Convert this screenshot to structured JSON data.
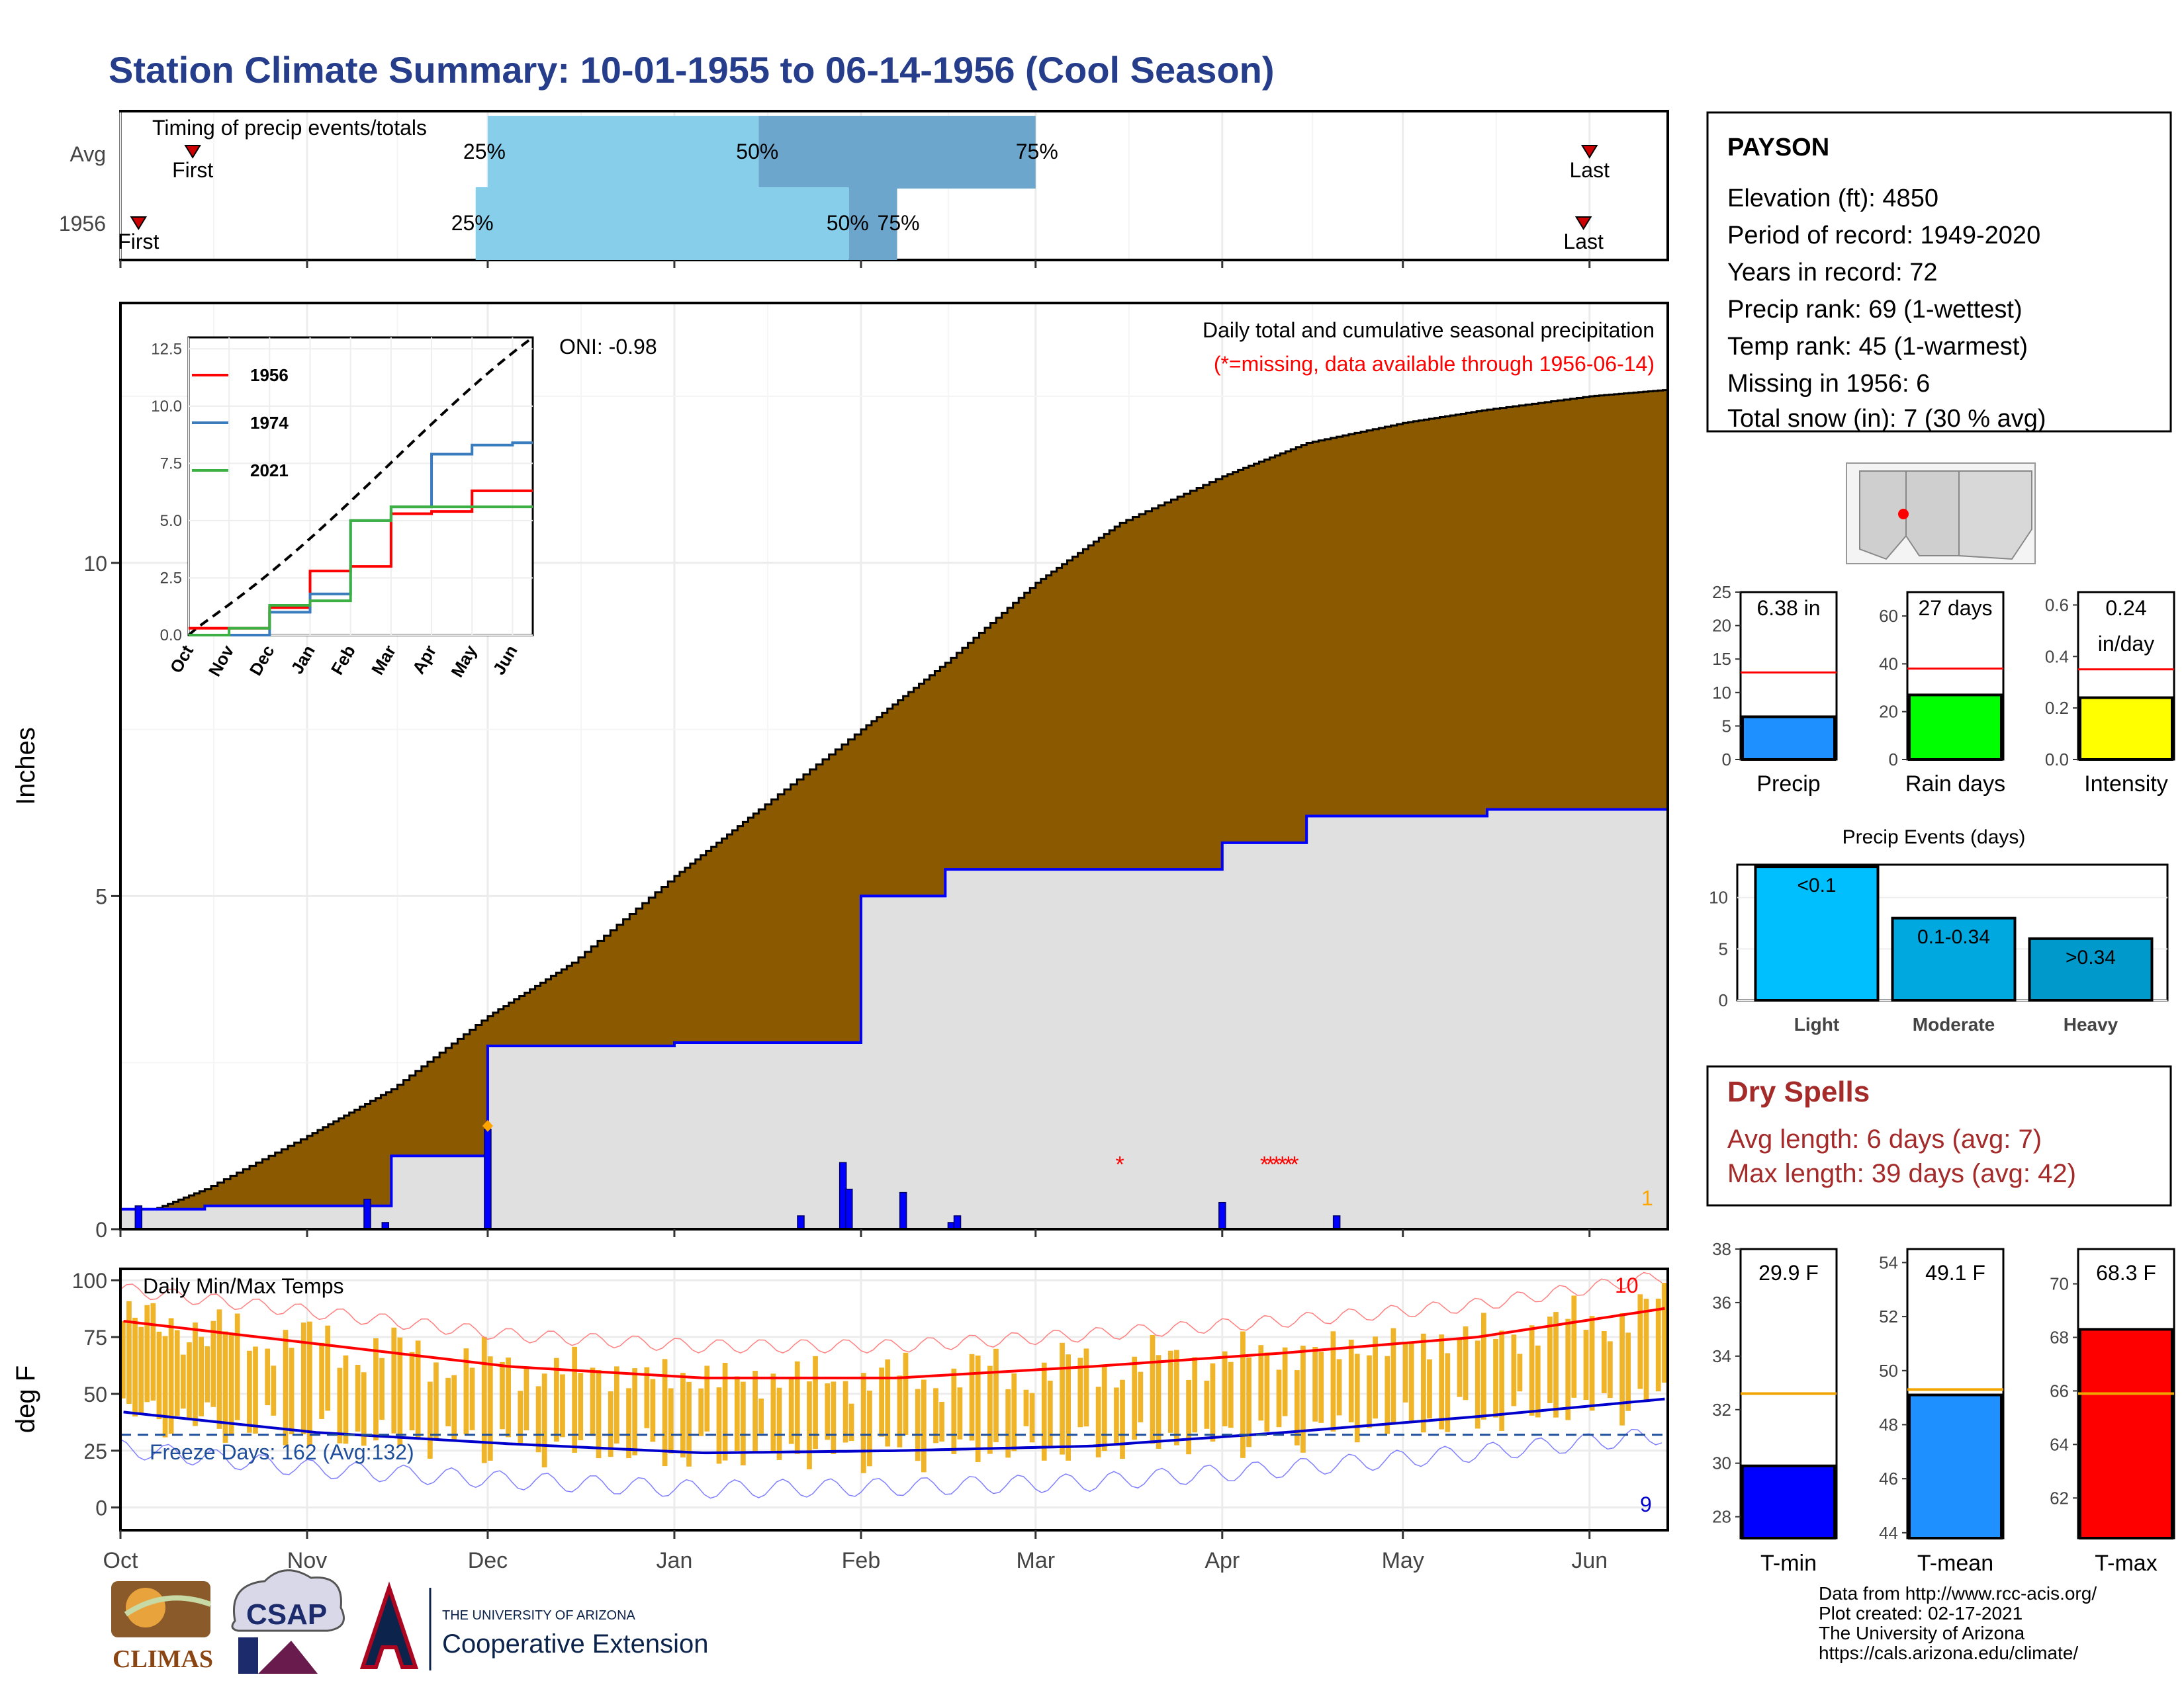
{
  "title": "Station Climate Summary: 10-01-1955 to 06-14-1956 (Cool Season)",
  "timing": {
    "label": "Timing of precip events/totals",
    "rows": [
      {
        "name": "Avg",
        "first_date": "1955-10-13",
        "last_date": "1956-06-01",
        "q25": "1955-12-01",
        "q50": "1956-01-15",
        "q75": "1956-03-01"
      },
      {
        "name": "1956",
        "first_date": "1955-10-04",
        "last_date": "1956-05-31",
        "q25": "1955-11-29",
        "q50": "1956-01-30",
        "q75": "1956-02-07"
      }
    ],
    "first_label": "First",
    "last_label": "Last",
    "pct_labels": [
      "25%",
      "50%",
      "75%"
    ],
    "bar_colors": [
      "#87ceeb",
      "#6ca6cd"
    ]
  },
  "station": {
    "name": "PAYSON",
    "lines": [
      "Elevation (ft): 4850",
      "Period of record: 1949-2020",
      "Years in record: 72",
      "Precip rank: 69 (1-wettest)",
      "Temp rank: 45 (1-warmest)",
      "Missing in 1956: 6",
      "Total snow (in): 7 (30 % avg)"
    ]
  },
  "precip_panel": {
    "ylabel": "Inches",
    "oni": "ONI: -0.98",
    "desc": "Daily total and cumulative seasonal precipitation",
    "missing_note": "(*=missing, data available through 1956-06-14)",
    "count_label": "1",
    "colors": {
      "cumulative": "#8b5a00",
      "average": "#e0e0e0",
      "line": "#0000ff",
      "daily": "#0000ff",
      "missing": "#ff0000",
      "count": "#ffa500"
    }
  },
  "inset": {
    "legend": [
      "1956",
      "1974",
      "2021"
    ],
    "colors": [
      "#ff0000",
      "#3a7dbf",
      "#3cb043"
    ],
    "yticks": [
      "0.0",
      "2.5",
      "5.0",
      "7.5",
      "10.0",
      "12.5"
    ],
    "xticks": [
      "Oct",
      "Nov",
      "Dec",
      "Jan",
      "Feb",
      "Mar",
      "Apr",
      "May",
      "Jun"
    ]
  },
  "temp_panel": {
    "title": "Daily Min/Max Temps",
    "ylabel": "deg F",
    "yticks": [
      "0",
      "25",
      "50",
      "75",
      "100"
    ],
    "freeze": "Freeze Days: 162 (Avg:132)",
    "max_count": "10",
    "min_count": "9"
  },
  "months": [
    "Oct",
    "Nov",
    "Dec",
    "Jan",
    "Feb",
    "Mar",
    "Apr",
    "May",
    "Jun"
  ],
  "bars_precip": {
    "labels": [
      "Precip",
      "Rain days",
      "Intensity"
    ],
    "values_text": [
      "6.38 in",
      "27 days",
      "0.24\nin/day"
    ],
    "colors": [
      "#1e90ff",
      "#00ff00",
      "#ffff00"
    ],
    "yticks": [
      [
        "0",
        "5",
        "10",
        "15",
        "20",
        "25"
      ],
      [
        "0",
        "20",
        "40",
        "60"
      ],
      [
        "0.0",
        "0.2",
        "0.4",
        "0.6"
      ]
    ]
  },
  "events": {
    "title": "Precip Events (days)",
    "labels": [
      "Light",
      "Moderate",
      "Heavy"
    ],
    "bar_text": [
      "<0.1",
      "0.1-0.34",
      ">0.34"
    ],
    "colors": [
      "#00bfff",
      "#00a8e0",
      "#0099cc"
    ],
    "yticks": [
      "0",
      "5",
      "10"
    ]
  },
  "dry": {
    "title": "Dry Spells",
    "lines": [
      "Avg length: 6 days (avg: 7)",
      "Max length: 39 days (avg: 42)"
    ],
    "color": "#a52a2a"
  },
  "bars_temp": {
    "labels": [
      "T-min",
      "T-mean",
      "T-max"
    ],
    "values_text": [
      "29.9 F",
      "49.1 F",
      "68.3 F"
    ],
    "colors": [
      "#0000ff",
      "#1e90ff",
      "#ff0000"
    ],
    "yticks": [
      [
        "28",
        "30",
        "32",
        "34",
        "36",
        "38"
      ],
      [
        "44",
        "46",
        "48",
        "50",
        "52",
        "54"
      ],
      [
        "62",
        "64",
        "66",
        "68",
        "70"
      ]
    ]
  },
  "footer": {
    "lines": [
      "Data from http://www.rcc-acis.org/",
      "Plot created: 02-17-2021",
      "The University of Arizona",
      "https://cals.arizona.edu/climate/"
    ],
    "logos": [
      "CLIMAS",
      "CSAP",
      "THE UNIVERSITY OF ARIZONA",
      "Cooperative Extension"
    ]
  },
  "chart_data": [
    {
      "type": "area",
      "title": "Daily total and cumulative seasonal precipitation",
      "ylabel": "Inches",
      "ylim": [
        0,
        13
      ],
      "x": [
        "1955-10-01",
        "1955-10-15",
        "1955-11-01",
        "1955-11-15",
        "1955-12-01",
        "1955-12-15",
        "1956-01-01",
        "1956-01-15",
        "1956-02-01",
        "1956-02-15",
        "1956-03-01",
        "1956-03-15",
        "1956-04-01",
        "1956-04-15",
        "1956-05-01",
        "1956-05-15",
        "1956-06-01",
        "1956-06-14"
      ],
      "series": [
        {
          "name": "1956",
          "values": [
            0.1,
            0.6,
            1.4,
            2.1,
            3.2,
            4.0,
            5.3,
            6.3,
            7.5,
            8.5,
            9.7,
            10.6,
            11.3,
            11.8,
            12.1,
            12.3,
            12.5,
            12.6
          ]
        },
        {
          "values": [
            0.3,
            0.35,
            0.35,
            1.1,
            2.75,
            2.75,
            2.8,
            2.8,
            5.0,
            5.4,
            5.4,
            5.4,
            5.8,
            6.2,
            6.2,
            6.3,
            6.3,
            6.35
          ]
        }
      ],
      "daily_bars": [
        [
          "1955-10-04",
          0.35
        ],
        [
          "1955-11-11",
          0.45
        ],
        [
          "1955-11-14",
          0.1
        ],
        [
          "1955-12-01",
          1.5
        ],
        [
          "1956-01-22",
          0.2
        ],
        [
          "1956-01-29",
          1.0
        ],
        [
          "1956-01-30",
          0.6
        ],
        [
          "1956-02-08",
          0.55
        ],
        [
          "1956-02-16",
          0.1
        ],
        [
          "1956-02-17",
          0.2
        ],
        [
          "1956-04-01",
          0.4
        ],
        [
          "1956-04-20",
          0.2
        ]
      ],
      "inset": {
        "xlim": [
          "Oct",
          "Jun"
        ],
        "ylim": [
          0,
          13
        ],
        "series": [
          {
            "name": "1956",
            "values": [
              0.3,
              0.3,
              1.2,
              2.8,
              3.0,
              5.3,
              5.4,
              6.3,
              6.3
            ]
          },
          {
            "name": "1974",
            "values": [
              0.0,
              0.0,
              1.0,
              1.8,
              5.0,
              5.6,
              7.9,
              8.3,
              8.4
            ]
          },
          {
            "name": "2021",
            "values": [
              0.0,
              0.3,
              1.3,
              1.5,
              5.0,
              5.6,
              5.6,
              5.6,
              5.6
            ]
          }
        ]
      }
    },
    {
      "type": "bar",
      "title": "Daily Min/Max Temps",
      "ylabel": "deg F",
      "ylim": [
        -10,
        105
      ],
      "x": [
        "Oct",
        "Nov",
        "Dec",
        "Jan",
        "Feb",
        "Mar",
        "Apr",
        "May",
        "Jun"
      ],
      "series": [
        {
          "values": [
            82,
            72,
            62,
            57,
            57,
            62,
            68,
            75,
            88
          ]
        },
        {
          "values": [
            42,
            33,
            28,
            24,
            25,
            27,
            33,
            40,
            48
          ]
        }
      ]
    },
    {
      "type": "bar",
      "categories": [
        "Precip",
        "Rain days",
        "Intensity"
      ],
      "values": [
        6.38,
        27,
        0.24
      ],
      "avg_lines": [
        13,
        38,
        0.35
      ]
    },
    {
      "type": "bar",
      "title": "Precip Events (days)",
      "categories": [
        "Light",
        "Moderate",
        "Heavy"
      ],
      "values": [
        13,
        8,
        6
      ],
      "ylim": [
        0,
        13
      ]
    },
    {
      "type": "bar",
      "categories": [
        "T-min",
        "T-mean",
        "T-max"
      ],
      "values": [
        29.9,
        49.1,
        68.3
      ],
      "avg_lines": [
        32.6,
        49.3,
        65.9
      ]
    }
  ]
}
